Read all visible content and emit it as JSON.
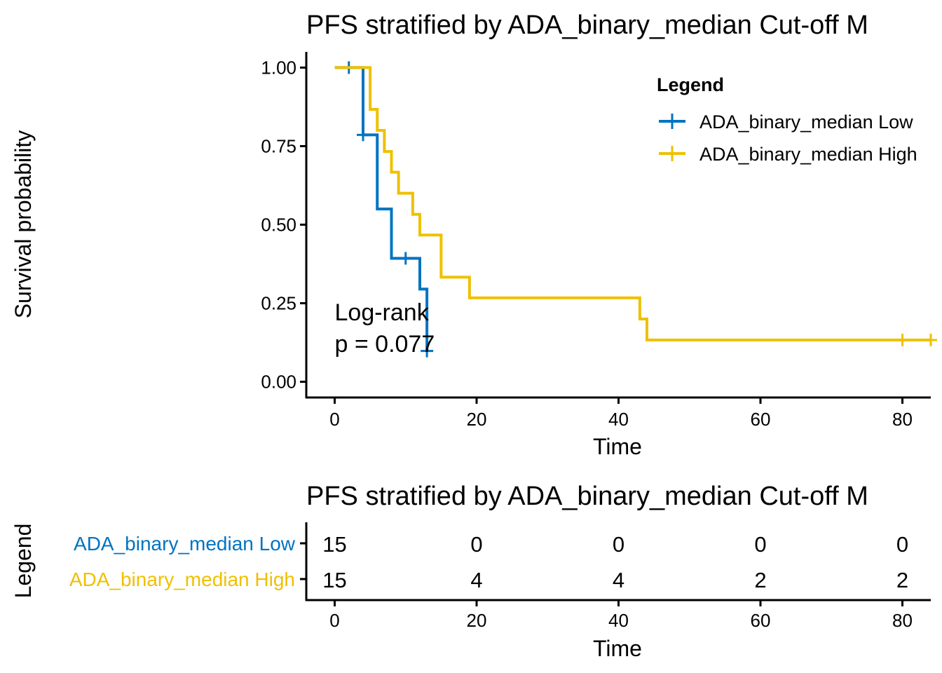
{
  "colors": {
    "low": "#0073C2",
    "high": "#EFC000",
    "axis": "#000000"
  },
  "chart_data": [
    {
      "type": "line",
      "subtype": "kaplan-meier",
      "title": "PFS stratified by ADA_binary_median Cut-off M",
      "xlabel": "Time",
      "ylabel": "Survival probability",
      "xlim": [
        -4,
        84
      ],
      "ylim": [
        -0.05,
        1.05
      ],
      "x_ticks": [
        "0",
        "20",
        "40",
        "60",
        "80"
      ],
      "y_ticks": [
        "0.00",
        "0.25",
        "0.50",
        "0.75",
        "1.00"
      ],
      "grid": false,
      "legend_title": "Legend",
      "legend_position": "top-right",
      "annotation": {
        "line1": "Log-rank",
        "line2": "p = 0.077",
        "x": 0,
        "y": 0.2
      },
      "series": [
        {
          "name": "ADA_binary_median Low",
          "color": "#0073C2",
          "steps": [
            [
              0,
              1.0
            ],
            [
              4,
              0.786
            ],
            [
              6,
              0.55
            ],
            [
              8,
              0.393
            ],
            [
              12,
              0.295
            ],
            [
              13,
              0.098
            ]
          ],
          "end_time": 13,
          "censors": [
            [
              2,
              1.0
            ],
            [
              4,
              0.786
            ],
            [
              10,
              0.393
            ],
            [
              13,
              0.098
            ]
          ]
        },
        {
          "name": "ADA_binary_median High",
          "color": "#EFC000",
          "steps": [
            [
              0,
              1.0
            ],
            [
              5,
              0.867
            ],
            [
              6,
              0.8
            ],
            [
              7,
              0.733
            ],
            [
              8,
              0.667
            ],
            [
              9,
              0.6
            ],
            [
              11,
              0.533
            ],
            [
              12,
              0.467
            ],
            [
              15,
              0.333
            ],
            [
              19,
              0.267
            ],
            [
              43,
              0.2
            ],
            [
              44,
              0.133
            ]
          ],
          "end_time": 84,
          "censors": [
            [
              80,
              0.133
            ],
            [
              84,
              0.133
            ]
          ]
        }
      ]
    },
    {
      "type": "table",
      "subtype": "risk-table",
      "title": "PFS stratified by ADA_binary_median Cut-off M",
      "xlabel": "Time",
      "ylabel": "Legend",
      "x_ticks": [
        "0",
        "20",
        "40",
        "60",
        "80"
      ],
      "rows": [
        {
          "name": "ADA_binary_median Low",
          "color": "#0073C2",
          "values": [
            "15",
            "0",
            "0",
            "0",
            "0"
          ]
        },
        {
          "name": "ADA_binary_median High",
          "color": "#EFC000",
          "values": [
            "15",
            "4",
            "4",
            "2",
            "2"
          ]
        }
      ]
    }
  ]
}
